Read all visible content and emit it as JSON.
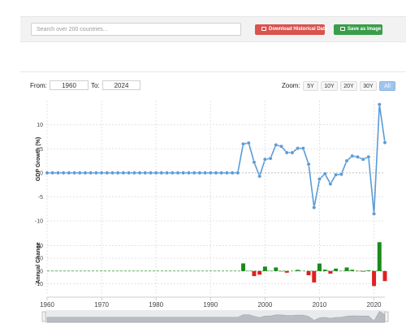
{
  "toolbar": {
    "search_placeholder": "Search over 200 countries...",
    "download_label": "Download Historical Data",
    "save_label": "Save as Image"
  },
  "range": {
    "from_label": "From:",
    "from_value": "1960",
    "to_label": "To:",
    "to_value": "2024"
  },
  "zoom": {
    "label": "Zoom:",
    "buttons": [
      "5Y",
      "10Y",
      "20Y",
      "30Y",
      "All"
    ],
    "active": "All"
  },
  "colors": {
    "line": "#5a9bd5",
    "positive": "#1a8a1a",
    "negative": "#e02020"
  },
  "chart_data": [
    {
      "type": "line",
      "ylabel": "GDP Growth (%)",
      "yticks": [
        "10",
        "5",
        "0",
        "-5",
        "-10"
      ],
      "ylim": [
        -12,
        15
      ],
      "x": [
        1960,
        1961,
        1962,
        1963,
        1964,
        1965,
        1966,
        1967,
        1968,
        1969,
        1970,
        1971,
        1972,
        1973,
        1974,
        1975,
        1976,
        1977,
        1978,
        1979,
        1980,
        1981,
        1982,
        1983,
        1984,
        1985,
        1986,
        1987,
        1988,
        1989,
        1990,
        1991,
        1992,
        1993,
        1994,
        1995,
        1996,
        1997,
        1998,
        1999,
        2000,
        2001,
        2002,
        2003,
        2004,
        2005,
        2006,
        2007,
        2008,
        2009,
        2010,
        2011,
        2012,
        2013,
        2014,
        2015,
        2016,
        2017,
        2018,
        2019,
        2020,
        2021,
        2022
      ],
      "values": [
        0,
        0,
        0,
        0,
        0,
        0,
        0,
        0,
        0,
        0,
        0,
        0,
        0,
        0,
        0,
        0,
        0,
        0,
        0,
        0,
        0,
        0,
        0,
        0,
        0,
        0,
        0,
        0,
        0,
        0,
        0,
        0,
        0,
        0,
        0,
        0,
        6,
        6.2,
        2.2,
        -0.7,
        2.8,
        3,
        5.8,
        5.5,
        4.2,
        4.2,
        5.1,
        5.1,
        1.8,
        -7.2,
        -1.3,
        -0.2,
        -2.3,
        -0.4,
        -0.3,
        2.5,
        3.5,
        3.3,
        2.8,
        3.3,
        -8.5,
        14.2,
        6.3
      ]
    },
    {
      "type": "bar",
      "ylabel": "Annual Change",
      "yticks": [
        "20",
        "10",
        "0",
        "-10"
      ],
      "ylim": [
        -18,
        28
      ],
      "x": [
        1960,
        1961,
        1962,
        1963,
        1964,
        1965,
        1966,
        1967,
        1968,
        1969,
        1970,
        1971,
        1972,
        1973,
        1974,
        1975,
        1976,
        1977,
        1978,
        1979,
        1980,
        1981,
        1982,
        1983,
        1984,
        1985,
        1986,
        1987,
        1988,
        1989,
        1990,
        1991,
        1992,
        1993,
        1994,
        1995,
        1996,
        1997,
        1998,
        1999,
        2000,
        2001,
        2002,
        2003,
        2004,
        2005,
        2006,
        2007,
        2008,
        2009,
        2010,
        2011,
        2012,
        2013,
        2014,
        2015,
        2016,
        2017,
        2018,
        2019,
        2020,
        2021,
        2022
      ],
      "values": [
        0,
        0,
        0,
        0,
        0,
        0,
        0,
        0,
        0,
        0,
        0,
        0,
        0,
        0,
        0,
        0,
        0,
        0,
        0,
        0,
        0,
        0,
        0,
        0,
        0,
        0,
        0,
        0,
        0,
        0,
        0,
        0,
        0,
        0,
        0,
        0,
        6,
        0.2,
        -4,
        -2.9,
        3.5,
        0.2,
        2.8,
        -0.3,
        -1.3,
        0,
        0.9,
        0,
        -3.3,
        -9,
        5.9,
        1.1,
        -2.1,
        1.9,
        0.1,
        2.8,
        1,
        -0.2,
        -0.5,
        0.5,
        -11.8,
        22.7,
        -7.9
      ]
    },
    {
      "type": "area",
      "xticks": [
        "1960",
        "1970",
        "1980",
        "1990",
        "2000",
        "2010",
        "2020"
      ],
      "xlim": [
        1960,
        2022
      ]
    }
  ]
}
